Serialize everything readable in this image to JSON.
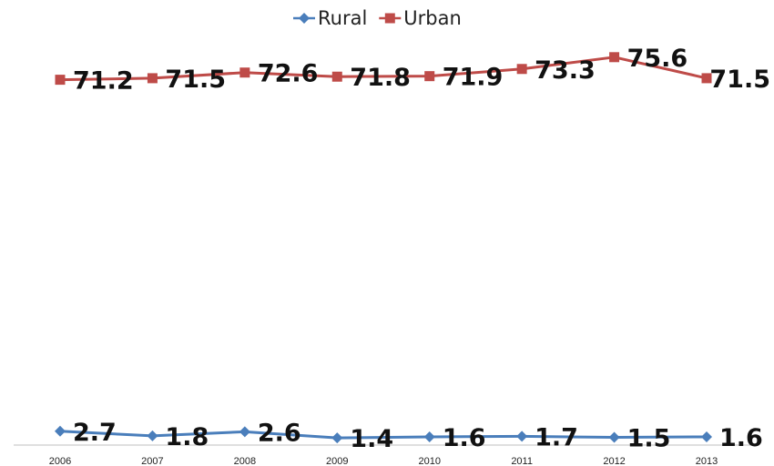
{
  "chart_data": {
    "type": "line",
    "categories": [
      "2006",
      "2007",
      "2008",
      "2009",
      "2010",
      "2011",
      "2012",
      "2013"
    ],
    "series": [
      {
        "name": "Rural",
        "values": [
          2.7,
          1.8,
          2.6,
          1.4,
          1.6,
          1.7,
          1.5,
          1.6
        ],
        "color": "#4a7ebb",
        "marker": "diamond"
      },
      {
        "name": "Urban",
        "values": [
          71.2,
          71.5,
          72.6,
          71.8,
          71.9,
          73.3,
          75.6,
          71.5
        ],
        "color": "#be4b48",
        "marker": "square"
      }
    ],
    "title": "",
    "xlabel": "",
    "ylabel": "",
    "ylim": [
      0,
      80
    ],
    "grid": false,
    "legend_position": "top",
    "data_labels": true,
    "axis_color": "#bfbfbf"
  }
}
